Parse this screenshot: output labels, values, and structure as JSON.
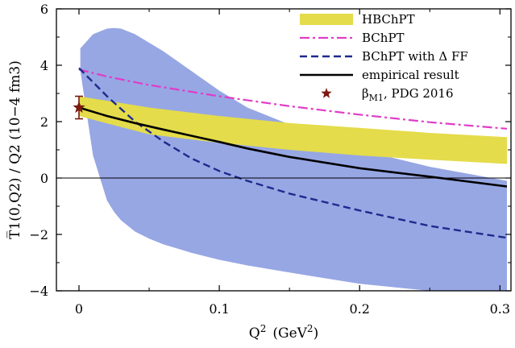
{
  "chart_data": {
    "type": "line",
    "xlabel": "Q",
    "xlabel_sup": "2",
    "xlabel_unit_pre": "(GeV",
    "xlabel_unit_sup": "2",
    "xlabel_unit_post": ")",
    "ylabel": "T̅1(0,Q2) / Q2  (10−4 fm3)",
    "xlim": [
      0,
      0.305
    ],
    "ylim": [
      -4,
      6
    ],
    "x_ticks": [
      {
        "value": 0,
        "label": "0"
      },
      {
        "value": 0.1,
        "label": "0.1"
      },
      {
        "value": 0.2,
        "label": "0.2"
      },
      {
        "value": 0.3,
        "label": "0.3"
      }
    ],
    "y_ticks": [
      {
        "value": -4,
        "label": "−4"
      },
      {
        "value": -2,
        "label": "−2"
      },
      {
        "value": 0,
        "label": "0"
      },
      {
        "value": 2,
        "label": "2"
      },
      {
        "value": 4,
        "label": "4"
      },
      {
        "value": 6,
        "label": "6"
      }
    ],
    "grid": false,
    "legend_position": "top-right",
    "zero_line": true,
    "colors": {
      "blue_band": "#97a7e4",
      "hbchpt": "#e4dc4a",
      "bchpt": "#e03cc8",
      "bchpt_delta": "#1f2a8c",
      "empirical": "#000000",
      "pdg": "#7a1a10"
    },
    "series": [
      {
        "key": "empirical_band",
        "type": "band",
        "x": [
          0.001,
          0.01,
          0.02,
          0.025,
          0.03,
          0.04,
          0.05,
          0.06,
          0.08,
          0.1,
          0.12,
          0.15,
          0.2,
          0.25,
          0.305
        ],
        "upper": [
          4.6,
          5.1,
          5.3,
          5.32,
          5.3,
          5.1,
          4.8,
          4.5,
          3.8,
          3.1,
          2.5,
          1.9,
          1.0,
          0.4,
          -0.1
        ],
        "lower": [
          3.8,
          0.8,
          -0.8,
          -1.2,
          -1.5,
          -1.9,
          -2.15,
          -2.35,
          -2.65,
          -2.9,
          -3.1,
          -3.35,
          -3.75,
          -4.0,
          -4.0
        ]
      },
      {
        "key": "hbchpt",
        "name": "HBChPT",
        "type": "band",
        "x": [
          0,
          0.05,
          0.1,
          0.15,
          0.2,
          0.25,
          0.305
        ],
        "upper": [
          2.9,
          2.5,
          2.2,
          1.95,
          1.78,
          1.6,
          1.45
        ],
        "lower": [
          2.2,
          1.55,
          1.25,
          1.0,
          0.8,
          0.65,
          0.5
        ]
      },
      {
        "key": "bchpt",
        "name": "BChPT",
        "type": "line",
        "x": [
          0,
          0.02,
          0.05,
          0.1,
          0.15,
          0.2,
          0.25,
          0.305
        ],
        "values": [
          3.85,
          3.6,
          3.3,
          2.9,
          2.55,
          2.25,
          1.98,
          1.75
        ]
      },
      {
        "key": "bchpt_delta",
        "name": "BChPT with Δ FF",
        "type": "line",
        "x": [
          0,
          0.02,
          0.04,
          0.06,
          0.08,
          0.1,
          0.12,
          0.15,
          0.2,
          0.25,
          0.305
        ],
        "values": [
          3.9,
          2.9,
          2.0,
          1.3,
          0.7,
          0.25,
          -0.1,
          -0.55,
          -1.15,
          -1.7,
          -2.12
        ]
      },
      {
        "key": "empirical",
        "name": "empirical result",
        "type": "line",
        "x": [
          0,
          0.02,
          0.04,
          0.06,
          0.08,
          0.1,
          0.12,
          0.15,
          0.2,
          0.25,
          0.305
        ],
        "values": [
          2.5,
          2.2,
          1.95,
          1.72,
          1.5,
          1.28,
          1.05,
          0.75,
          0.35,
          0.05,
          -0.3
        ]
      },
      {
        "key": "pdg",
        "name": "βM1, PDG 2016",
        "type": "point",
        "x": [
          0
        ],
        "values": [
          2.5
        ],
        "error": [
          0.4
        ]
      }
    ],
    "legend": [
      {
        "key": "hbchpt",
        "label": "HBChPT"
      },
      {
        "key": "bchpt",
        "label": "BChPT"
      },
      {
        "key": "bchpt_delta",
        "label": "BChPT with Δ FF"
      },
      {
        "key": "empirical",
        "label": "empirical result"
      },
      {
        "key": "pdg",
        "label_main": "β",
        "label_sub": "M1",
        "label_rest": ", PDG 2016"
      }
    ]
  }
}
